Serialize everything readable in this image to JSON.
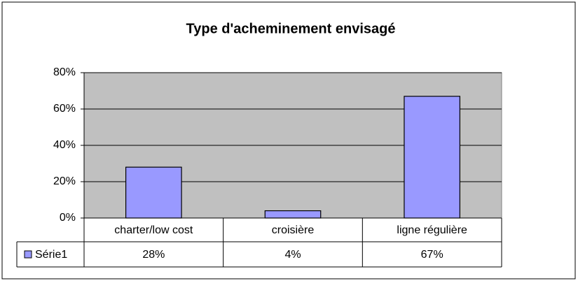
{
  "chart_data": {
    "type": "bar",
    "title": "Type d'acheminement envisagé",
    "categories": [
      "charter/low  cost",
      "croisière",
      "ligne régulière"
    ],
    "series": [
      {
        "name": "Série1",
        "color": "#9999ff",
        "values": [
          28,
          4,
          67
        ],
        "value_labels": [
          "28%",
          "4%",
          "67%"
        ]
      }
    ],
    "ylim": [
      0,
      80
    ],
    "yticks": [
      {
        "value": 0,
        "label": "0%"
      },
      {
        "value": 20,
        "label": "20%"
      },
      {
        "value": 40,
        "label": "40%"
      },
      {
        "value": 60,
        "label": "60%"
      },
      {
        "value": 80,
        "label": "80%"
      }
    ],
    "grid": true,
    "plot_background": "#c0c0c0"
  }
}
